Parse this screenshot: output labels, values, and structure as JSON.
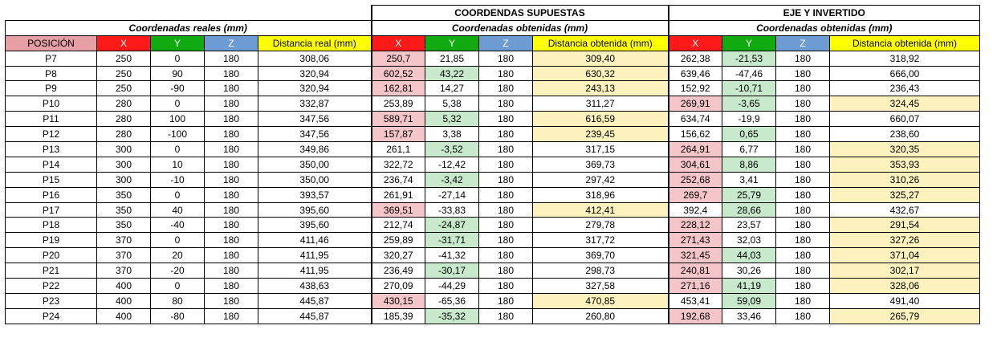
{
  "headers": {
    "section_supuestas": "COORDENDAS SUPUESTAS",
    "section_invertido": "EJE Y INVERTIDO",
    "reales_title": "Coordenadas reales (mm)",
    "obtenidas_title": "Coordenadas obtenidas (mm)",
    "obtenidas_title_2": "Coordenadas obtenidas (mm)"
  },
  "columns": [
    "POSICIÓN",
    "X",
    "Y",
    "Z",
    "Distancia real (mm)",
    "X",
    "Y",
    "Z",
    "Distancia obtenida (mm)",
    "X",
    "Y",
    "Z",
    "Distancia obtenida (mm)"
  ],
  "colors": {
    "pos_header": "#e6a0a5",
    "x_header": "#ff1a1a",
    "y_header": "#11aa11",
    "z_header": "#6d9bd3",
    "dist_header": "#ffff00",
    "x_highlight": "#f5c6c9",
    "y_highlight": "#c8e9cc",
    "dist_highlight": "#fdf2bd"
  },
  "rows": [
    {
      "cells": [
        "P7",
        "250",
        "0",
        "180",
        "308,06",
        "250,7",
        "21,85",
        "180",
        "309,40",
        "262,38",
        "-21,53",
        "180",
        "318,92"
      ],
      "hl": [
        5,
        8,
        10
      ]
    },
    {
      "cells": [
        "P8",
        "250",
        "90",
        "180",
        "320,94",
        "602,52",
        "43,22",
        "180",
        "630,32",
        "639,46",
        "-47,46",
        "180",
        "666,00"
      ],
      "hl": [
        5,
        6,
        8
      ]
    },
    {
      "cells": [
        "P9",
        "250",
        "-90",
        "180",
        "320,94",
        "162,81",
        "14,27",
        "180",
        "243,13",
        "152,92",
        "-10,71",
        "180",
        "236,43"
      ],
      "hl": [
        5,
        8,
        10
      ]
    },
    {
      "cells": [
        "P10",
        "280",
        "0",
        "180",
        "332,87",
        "253,89",
        "5,38",
        "180",
        "311,27",
        "269,91",
        "-3,65",
        "180",
        "324,45"
      ],
      "hl": [
        9,
        10,
        12
      ]
    },
    {
      "cells": [
        "P11",
        "280",
        "100",
        "180",
        "347,56",
        "589,71",
        "5,32",
        "180",
        "616,59",
        "634,74",
        "-19,9",
        "180",
        "660,07"
      ],
      "hl": [
        5,
        6,
        8
      ]
    },
    {
      "cells": [
        "P12",
        "280",
        "-100",
        "180",
        "347,56",
        "157,87",
        "3,38",
        "180",
        "239,45",
        "156,62",
        "0,65",
        "180",
        "238,60"
      ],
      "hl": [
        5,
        8,
        10
      ]
    },
    {
      "cells": [
        "P13",
        "300",
        "0",
        "180",
        "349,86",
        "261,1",
        "-3,52",
        "180",
        "317,15",
        "264,91",
        "6,77",
        "180",
        "320,35"
      ],
      "hl": [
        6,
        9,
        12
      ]
    },
    {
      "cells": [
        "P14",
        "300",
        "10",
        "180",
        "350,00",
        "322,72",
        "-12,42",
        "180",
        "369,73",
        "304,61",
        "8,86",
        "180",
        "353,93"
      ],
      "hl": [
        9,
        10,
        12
      ]
    },
    {
      "cells": [
        "P15",
        "300",
        "-10",
        "180",
        "350,00",
        "236,74",
        "-3,42",
        "180",
        "297,42",
        "252,68",
        "3,41",
        "180",
        "310,26"
      ],
      "hl": [
        6,
        9,
        12
      ]
    },
    {
      "cells": [
        "P16",
        "350",
        "0",
        "180",
        "393,57",
        "261,91",
        "-27,14",
        "180",
        "318,96",
        "269,7",
        "25,79",
        "180",
        "325,27"
      ],
      "hl": [
        9,
        10,
        12
      ]
    },
    {
      "cells": [
        "P17",
        "350",
        "40",
        "180",
        "395,60",
        "369,51",
        "-33,83",
        "180",
        "412,41",
        "392,4",
        "28,66",
        "180",
        "432,67"
      ],
      "hl": [
        5,
        8,
        10
      ]
    },
    {
      "cells": [
        "P18",
        "350",
        "-40",
        "180",
        "395,60",
        "212,74",
        "-24,87",
        "180",
        "279,78",
        "228,12",
        "23,57",
        "180",
        "291,54"
      ],
      "hl": [
        6,
        9,
        12
      ]
    },
    {
      "cells": [
        "P19",
        "370",
        "0",
        "180",
        "411,46",
        "259,89",
        "-31,71",
        "180",
        "317,72",
        "271,43",
        "32,03",
        "180",
        "327,26"
      ],
      "hl": [
        6,
        9,
        12
      ]
    },
    {
      "cells": [
        "P20",
        "370",
        "20",
        "180",
        "411,95",
        "320,27",
        "-41,32",
        "180",
        "369,70",
        "321,45",
        "44,03",
        "180",
        "371,04"
      ],
      "hl": [
        9,
        10,
        12
      ]
    },
    {
      "cells": [
        "P21",
        "370",
        "-20",
        "180",
        "411,95",
        "236,49",
        "-30,17",
        "180",
        "298,73",
        "240,81",
        "30,26",
        "180",
        "302,17"
      ],
      "hl": [
        6,
        9,
        12
      ]
    },
    {
      "cells": [
        "P22",
        "400",
        "0",
        "180",
        "438,63",
        "270,09",
        "-44,29",
        "180",
        "327,58",
        "271,16",
        "41,19",
        "180",
        "328,06"
      ],
      "hl": [
        9,
        10,
        12
      ]
    },
    {
      "cells": [
        "P23",
        "400",
        "80",
        "180",
        "445,87",
        "430,15",
        "-65,36",
        "180",
        "470,85",
        "453,41",
        "59,09",
        "180",
        "491,40"
      ],
      "hl": [
        5,
        8,
        10
      ]
    },
    {
      "cells": [
        "P24",
        "400",
        "-80",
        "180",
        "445,87",
        "185,39",
        "-35,32",
        "180",
        "260,80",
        "192,68",
        "33,46",
        "180",
        "265,79"
      ],
      "hl": [
        6,
        9,
        12
      ]
    }
  ]
}
